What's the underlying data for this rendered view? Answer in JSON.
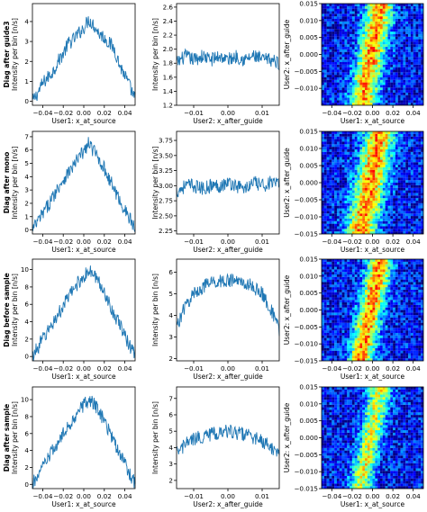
{
  "rows": [
    {
      "title": "Diag after guide3"
    },
    {
      "title": "Diag after mono"
    },
    {
      "title": "Diag before sample"
    },
    {
      "title": "Diag after sample"
    }
  ],
  "labels": {
    "ylabel_intensity": "Intensity per bin [n/s]",
    "xlabel_source": "User1: x_at_source",
    "xlabel_guide": "User2: x_after_guide",
    "ylabel_2d": "User2: x_after_guide"
  },
  "colors": {
    "line": "#1f77b4",
    "colormap": "jet"
  },
  "chart_data": [
    {
      "type": "line",
      "row": 0,
      "column": 0,
      "xlabel": "User1: x_at_source",
      "ylabel": "Intensity per bin [n/s]",
      "xlim": [
        -0.05,
        0.05
      ],
      "ylim": [
        -0.2,
        4.9
      ],
      "xticks": [
        -0.04,
        -0.02,
        0.0,
        0.02,
        0.04
      ],
      "xtick_labels": [
        "−0.04",
        "−0.02",
        "0.00",
        "0.02",
        "0.04"
      ],
      "yticks": [
        0,
        1,
        2,
        3,
        4
      ],
      "ytick_labels": [
        "0",
        "1",
        "2",
        "3",
        "4"
      ],
      "x": [
        -0.05,
        -0.045,
        -0.04,
        -0.035,
        -0.03,
        -0.025,
        -0.02,
        -0.015,
        -0.01,
        -0.005,
        0.0,
        0.005,
        0.01,
        0.015,
        0.02,
        0.025,
        0.03,
        0.035,
        0.04,
        0.045,
        0.05
      ],
      "y": [
        0.0,
        0.4,
        0.9,
        1.2,
        1.5,
        2.0,
        2.4,
        2.9,
        3.1,
        3.4,
        3.7,
        4.1,
        3.8,
        3.4,
        3.2,
        2.9,
        2.6,
        1.8,
        1.3,
        0.7,
        0.1
      ]
    },
    {
      "type": "line",
      "row": 0,
      "column": 1,
      "xlabel": "User2: x_after_guide",
      "ylabel": "Intensity per bin [n/s]",
      "xlim": [
        -0.015,
        0.015
      ],
      "ylim": [
        1.2,
        2.65
      ],
      "xticks": [
        -0.01,
        0.0,
        0.01
      ],
      "xtick_labels": [
        "−0.01",
        "0.00",
        "0.01"
      ],
      "yticks": [
        1.2,
        1.4,
        1.6,
        1.8,
        2.0,
        2.2,
        2.4,
        2.6
      ],
      "ytick_labels": [
        "1.2",
        "1.4",
        "1.6",
        "1.8",
        "2.0",
        "2.2",
        "2.4",
        "2.6"
      ],
      "x": [
        -0.015,
        -0.0125,
        -0.01,
        -0.0075,
        -0.005,
        -0.0025,
        0.0,
        0.0025,
        0.005,
        0.0075,
        0.01,
        0.0125,
        0.015
      ],
      "y": [
        1.8,
        1.9,
        1.85,
        1.9,
        1.85,
        1.9,
        1.85,
        1.9,
        1.85,
        1.9,
        1.85,
        1.85,
        1.8
      ]
    },
    {
      "type": "heatmap",
      "row": 0,
      "column": 2,
      "xlabel": "User1: x_at_source",
      "ylabel": "User2: x_after_guide",
      "xlim": [
        -0.05,
        0.05
      ],
      "ylim": [
        -0.015,
        0.015
      ],
      "xticks": [
        -0.04,
        -0.02,
        0.0,
        0.02,
        0.04
      ],
      "xtick_labels": [
        "−0.04",
        "−0.02",
        "0.00",
        "0.02",
        "0.04"
      ],
      "yticks": [
        -0.01,
        -0.005,
        0.0,
        0.005,
        0.01,
        0.015
      ],
      "ytick_labels": [
        "−0.010",
        "−0.005",
        "0.000",
        "0.005",
        "0.010",
        "0.015"
      ],
      "bands": [
        {
          "y": -0.015,
          "x_center": -0.01
        },
        {
          "y": 0.015,
          "x_center": 0.008
        }
      ],
      "band_width": 0.013,
      "peak": 1.0,
      "colormap": "jet"
    },
    {
      "type": "line",
      "row": 1,
      "column": 0,
      "xlabel": "User1: x_at_source",
      "ylabel": "Intensity per bin [n/s]",
      "xlim": [
        -0.05,
        0.05
      ],
      "ylim": [
        -0.3,
        7.4
      ],
      "xticks": [
        -0.04,
        -0.02,
        0.0,
        0.02,
        0.04
      ],
      "xtick_labels": [
        "−0.04",
        "−0.02",
        "0.00",
        "0.02",
        "0.04"
      ],
      "yticks": [
        0,
        1,
        2,
        3,
        4,
        5,
        6,
        7
      ],
      "ytick_labels": [
        "0",
        "1",
        "2",
        "3",
        "4",
        "5",
        "6",
        "7"
      ],
      "x": [
        -0.05,
        -0.045,
        -0.04,
        -0.035,
        -0.03,
        -0.025,
        -0.02,
        -0.015,
        -0.01,
        -0.005,
        0.0,
        0.005,
        0.01,
        0.015,
        0.02,
        0.025,
        0.03,
        0.035,
        0.04,
        0.045,
        0.05
      ],
      "y": [
        0.0,
        0.6,
        1.2,
        1.8,
        2.5,
        3.2,
        3.8,
        4.3,
        4.8,
        5.4,
        5.9,
        6.5,
        5.9,
        5.3,
        4.6,
        3.8,
        3.0,
        2.2,
        1.5,
        0.8,
        0.1
      ]
    },
    {
      "type": "line",
      "row": 1,
      "column": 1,
      "xlabel": "User2: x_after_guide",
      "ylabel": "Intensity per bin [n/s]",
      "xlim": [
        -0.015,
        0.015
      ],
      "ylim": [
        2.2,
        3.9
      ],
      "xticks": [
        -0.01,
        0.0,
        0.01
      ],
      "xtick_labels": [
        "−0.01",
        "0.00",
        "0.01"
      ],
      "yticks": [
        2.25,
        2.5,
        2.75,
        3.0,
        3.25,
        3.5,
        3.75
      ],
      "ytick_labels": [
        "2.25",
        "2.50",
        "2.75",
        "3.00",
        "3.25",
        "3.50",
        "3.75"
      ],
      "x": [
        -0.015,
        -0.0125,
        -0.01,
        -0.0075,
        -0.005,
        -0.0025,
        0.0,
        0.0025,
        0.005,
        0.0075,
        0.01,
        0.0125,
        0.015
      ],
      "y": [
        2.9,
        3.0,
        3.0,
        2.95,
        3.0,
        3.0,
        3.05,
        3.0,
        2.95,
        3.05,
        3.0,
        3.05,
        3.0
      ]
    },
    {
      "type": "heatmap",
      "row": 1,
      "column": 2,
      "xlabel": "User1: x_at_source",
      "ylabel": "User2: x_after_guide",
      "xlim": [
        -0.05,
        0.05
      ],
      "ylim": [
        -0.015,
        0.015
      ],
      "xticks": [
        -0.04,
        -0.02,
        0.0,
        0.02,
        0.04
      ],
      "xtick_labels": [
        "−0.04",
        "−0.02",
        "0.00",
        "0.02",
        "0.04"
      ],
      "yticks": [
        -0.015,
        -0.01,
        -0.005,
        0.0,
        0.005,
        0.01,
        0.015
      ],
      "ytick_labels": [
        "−0.015",
        "−0.010",
        "−0.005",
        "0.000",
        "0.005",
        "0.010",
        "0.015"
      ],
      "bands": [
        {
          "y": -0.015,
          "x_center": -0.012
        },
        {
          "y": 0.015,
          "x_center": 0.008
        }
      ],
      "band_width": 0.015,
      "peak": 1.0,
      "colormap": "jet"
    },
    {
      "type": "line",
      "row": 2,
      "column": 0,
      "xlabel": "User1: x_at_source",
      "ylabel": "Intensity per bin [n/s]",
      "xlim": [
        -0.05,
        0.05
      ],
      "ylim": [
        -0.5,
        11.2
      ],
      "xticks": [
        -0.04,
        -0.02,
        0.0,
        0.02,
        0.04
      ],
      "xtick_labels": [
        "−0.04",
        "−0.02",
        "0.00",
        "0.02",
        "0.04"
      ],
      "yticks": [
        0,
        2,
        4,
        6,
        8,
        10
      ],
      "ytick_labels": [
        "0",
        "2",
        "4",
        "6",
        "8",
        "10"
      ],
      "x": [
        -0.05,
        -0.045,
        -0.04,
        -0.035,
        -0.03,
        -0.025,
        -0.02,
        -0.015,
        -0.01,
        -0.005,
        0.0,
        0.005,
        0.01,
        0.015,
        0.02,
        0.025,
        0.03,
        0.035,
        0.04,
        0.045,
        0.05
      ],
      "y": [
        0.0,
        1.0,
        2.0,
        2.9,
        3.9,
        4.8,
        5.8,
        6.8,
        7.7,
        8.6,
        9.2,
        9.8,
        9.4,
        8.5,
        7.4,
        6.1,
        4.8,
        3.6,
        2.4,
        1.2,
        0.1
      ]
    },
    {
      "type": "line",
      "row": 2,
      "column": 1,
      "xlabel": "User2: x_after_guide",
      "ylabel": "Intensity per bin [n/s]",
      "xlim": [
        -0.015,
        0.015
      ],
      "ylim": [
        1.9,
        6.6
      ],
      "xticks": [
        -0.01,
        0.0,
        0.01
      ],
      "xtick_labels": [
        "−0.01",
        "0.00",
        "0.01"
      ],
      "yticks": [
        2,
        3,
        4,
        5,
        6
      ],
      "ytick_labels": [
        "2",
        "3",
        "4",
        "5",
        "6"
      ],
      "x": [
        -0.015,
        -0.0125,
        -0.01,
        -0.0075,
        -0.005,
        -0.0025,
        0.0,
        0.0025,
        0.005,
        0.0075,
        0.01,
        0.0125,
        0.015
      ],
      "y": [
        3.5,
        4.4,
        5.0,
        5.3,
        5.5,
        5.6,
        5.6,
        5.6,
        5.5,
        5.3,
        5.0,
        4.3,
        3.3
      ]
    },
    {
      "type": "heatmap",
      "row": 2,
      "column": 2,
      "xlabel": "User1: x_at_source",
      "ylabel": "User2: x_after_guide",
      "xlim": [
        -0.05,
        0.05
      ],
      "ylim": [
        -0.015,
        0.015
      ],
      "xticks": [
        -0.04,
        -0.02,
        0.0,
        0.02,
        0.04
      ],
      "xtick_labels": [
        "−0.04",
        "−0.02",
        "0.00",
        "0.02",
        "0.04"
      ],
      "yticks": [
        -0.015,
        -0.01,
        -0.005,
        0.0,
        0.005,
        0.01,
        0.015
      ],
      "ytick_labels": [
        "−0.015",
        "−0.010",
        "−0.005",
        "0.000",
        "0.005",
        "0.010",
        "0.015"
      ],
      "bands": [
        {
          "y": -0.015,
          "x_center": -0.012
        },
        {
          "y": 0.015,
          "x_center": 0.008
        }
      ],
      "band_width": 0.012,
      "peak": 1.0,
      "colormap": "jet"
    },
    {
      "type": "line",
      "row": 3,
      "column": 0,
      "xlabel": "User1: x_at_source",
      "ylabel": "Intensity per bin [n/s]",
      "xlim": [
        -0.05,
        0.05
      ],
      "ylim": [
        -0.5,
        11.5
      ],
      "xticks": [
        -0.04,
        -0.02,
        0.0,
        0.02,
        0.04
      ],
      "xtick_labels": [
        "−0.04",
        "−0.02",
        "0.00",
        "0.02",
        "0.04"
      ],
      "yticks": [
        0,
        2,
        4,
        6,
        8,
        10
      ],
      "ytick_labels": [
        "0",
        "2",
        "4",
        "6",
        "8",
        "10"
      ],
      "x": [
        -0.05,
        -0.045,
        -0.04,
        -0.035,
        -0.03,
        -0.025,
        -0.02,
        -0.015,
        -0.01,
        -0.005,
        0.0,
        0.005,
        0.01,
        0.015,
        0.02,
        0.025,
        0.03,
        0.035,
        0.04,
        0.045,
        0.05
      ],
      "y": [
        0.0,
        1.0,
        2.0,
        3.0,
        4.0,
        4.9,
        5.9,
        6.8,
        7.8,
        8.7,
        9.4,
        9.9,
        9.5,
        8.6,
        7.5,
        6.2,
        4.9,
        3.7,
        2.4,
        1.2,
        0.1
      ]
    },
    {
      "type": "line",
      "row": 3,
      "column": 1,
      "xlabel": "User2: x_after_guide",
      "ylabel": "Intensity per bin [n/s]",
      "xlim": [
        -0.015,
        0.015
      ],
      "ylim": [
        1.5,
        7.7
      ],
      "xticks": [
        -0.01,
        0.0,
        0.01
      ],
      "xtick_labels": [
        "−0.01",
        "0.00",
        "0.01"
      ],
      "yticks": [
        2,
        3,
        4,
        5,
        6,
        7
      ],
      "ytick_labels": [
        "2",
        "3",
        "4",
        "5",
        "6",
        "7"
      ],
      "x": [
        -0.015,
        -0.0125,
        -0.01,
        -0.0075,
        -0.005,
        -0.0025,
        0.0,
        0.0025,
        0.005,
        0.0075,
        0.01,
        0.0125,
        0.015
      ],
      "y": [
        3.6,
        4.2,
        4.5,
        4.7,
        4.8,
        4.9,
        5.0,
        4.9,
        4.8,
        4.6,
        4.4,
        4.0,
        3.4
      ]
    },
    {
      "type": "heatmap",
      "row": 3,
      "column": 2,
      "xlabel": "User1: x_at_source",
      "ylabel": "User2: x_after_guide",
      "xlim": [
        -0.05,
        0.05
      ],
      "ylim": [
        -0.015,
        0.015
      ],
      "xticks": [
        -0.04,
        -0.02,
        0.0,
        0.02,
        0.04
      ],
      "xtick_labels": [
        "−0.04",
        "−0.02",
        "0.00",
        "0.02",
        "0.04"
      ],
      "yticks": [
        -0.015,
        -0.01,
        -0.005,
        0.0,
        0.005,
        0.01,
        0.015
      ],
      "ytick_labels": [
        "−0.015",
        "−0.010",
        "−0.005",
        "0.000",
        "0.005",
        "0.010",
        "0.015"
      ],
      "bands": [
        {
          "y": -0.015,
          "x_center": -0.012
        },
        {
          "y": 0.015,
          "x_center": 0.008
        }
      ],
      "band_width": 0.011,
      "peak": 0.75,
      "colormap": "jet"
    }
  ]
}
